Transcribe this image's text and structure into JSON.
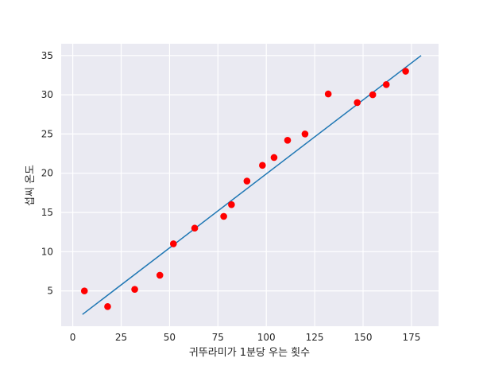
{
  "chart_data": {
    "type": "scatter",
    "xlabel": "귀뚜라미가 1분당 우는 횟수",
    "ylabel": "섭씨 온도",
    "xlim": [
      -6,
      189
    ],
    "ylim": [
      0.5,
      36.5
    ],
    "xticks": [
      0,
      25,
      50,
      75,
      100,
      125,
      150,
      175
    ],
    "yticks": [
      5,
      10,
      15,
      20,
      25,
      30,
      35
    ],
    "grid": true,
    "background": "#eaeaf2",
    "series": [
      {
        "type": "scatter",
        "color": "#ff0000",
        "points": [
          [
            6,
            5
          ],
          [
            18,
            3
          ],
          [
            32,
            5.2
          ],
          [
            45,
            7
          ],
          [
            52,
            11
          ],
          [
            63,
            13
          ],
          [
            78,
            14.5
          ],
          [
            82,
            16
          ],
          [
            90,
            19
          ],
          [
            98,
            21
          ],
          [
            104,
            22
          ],
          [
            111,
            24.2
          ],
          [
            120,
            25
          ],
          [
            132,
            30.1
          ],
          [
            147,
            29
          ],
          [
            155,
            30
          ],
          [
            162,
            31.3
          ],
          [
            172,
            33
          ]
        ]
      },
      {
        "type": "line",
        "color": "#1f77b4",
        "points": [
          [
            5,
            2
          ],
          [
            180,
            35
          ]
        ]
      }
    ]
  }
}
